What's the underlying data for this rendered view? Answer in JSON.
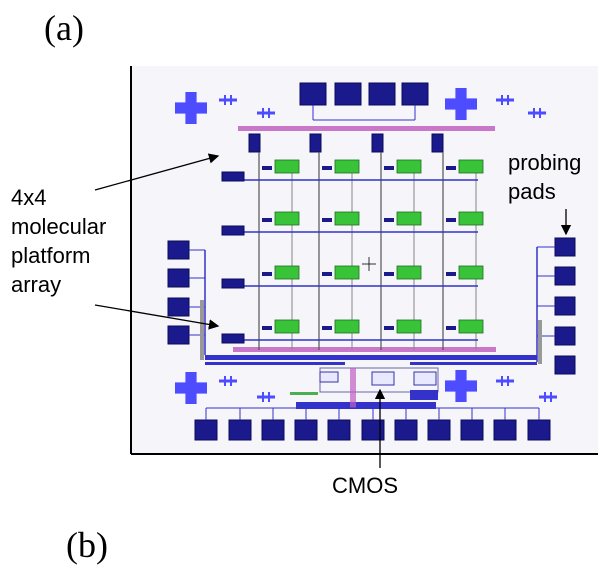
{
  "panel_a_label": "(a)",
  "panel_b_label": "(b)",
  "callouts": {
    "array_line1": "4x4",
    "array_line2": "molecular",
    "array_line3": "platform",
    "array_line4": "array",
    "pads_line1": "probing",
    "pads_line2": "pads",
    "cmos": "CMOS"
  },
  "colors": {
    "pad": "#1a1a8c",
    "cross": "#4d4dff",
    "trace": "#3333cc",
    "platform_fill": "#39c339",
    "bus": "#c060c0",
    "layout_bg": "#f4f4f8"
  },
  "array": {
    "rows": 4,
    "cols": 4
  }
}
